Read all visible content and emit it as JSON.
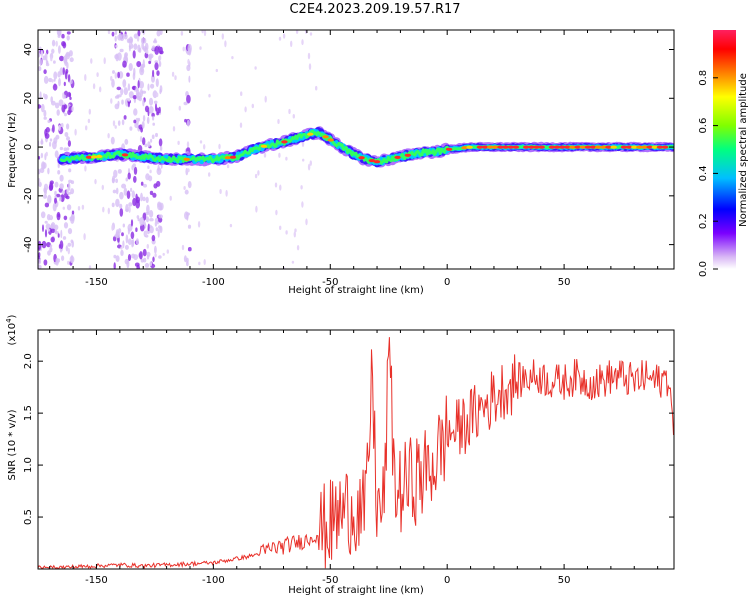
{
  "title": "C2E4.2023.209.19.57.R17",
  "chart_data": [
    {
      "type": "heatmap",
      "title": "C2E4.2023.209.19.57.R17",
      "xlabel": "Height of straight line (km)",
      "ylabel": "Frequency (Hz)",
      "xlim": [
        -175,
        97
      ],
      "ylim": [
        -50,
        48
      ],
      "xticks": [
        -150,
        -100,
        -50,
        0,
        50
      ],
      "yticks": [
        -40,
        -20,
        0,
        20,
        40
      ],
      "colorbar": {
        "label": "Normalized spectral amplitude",
        "range": [
          0,
          1
        ],
        "ticks": [
          0.0,
          0.2,
          0.4,
          0.6,
          0.8
        ],
        "tick_labels": [
          "0.0",
          "0.2",
          "0.4",
          "0.6",
          "0.8"
        ],
        "colormap": [
          "#ffffff",
          "#d9b8f5",
          "#7a00ff",
          "#0000ff",
          "#00bfff",
          "#00ff80",
          "#80ff00",
          "#ffff00",
          "#ff8000",
          "#ff0000",
          "#ff2060"
        ]
      },
      "ridge": {
        "height_km": [
          -165,
          -150,
          -140,
          -130,
          -120,
          -110,
          -100,
          -90,
          -80,
          -70,
          -60,
          -55,
          -50,
          -45,
          -40,
          -35,
          -30,
          -25,
          -20,
          -15,
          -10,
          -5,
          0,
          10,
          20,
          30,
          40,
          50,
          60,
          70,
          80,
          90,
          97
        ],
        "frequency_hz": [
          -5,
          -4,
          -3,
          -4,
          -5,
          -5,
          -5,
          -4,
          0,
          2,
          5,
          6,
          3,
          0,
          -3,
          -5,
          -6,
          -5,
          -4,
          -3,
          -2,
          -2,
          -1,
          0,
          0,
          0,
          0,
          0,
          0,
          0,
          0,
          0,
          0
        ]
      },
      "noise_bands_km": [
        [
          -175,
          -160
        ],
        [
          -143,
          -122
        ],
        [
          -112,
          -110
        ]
      ]
    },
    {
      "type": "line",
      "xlabel": "Height of straight line (km)",
      "ylabel": "SNR (10 * v/v)",
      "y_multiplier": "(x10",
      "y_multiplier_exp": "4",
      "y_multiplier_close": ")",
      "xlim": [
        -175,
        97
      ],
      "ylim": [
        0,
        2.3
      ],
      "xticks": [
        -150,
        -100,
        -50,
        0,
        50
      ],
      "yticks": [
        0.5,
        1.0,
        1.5,
        2.0
      ],
      "ytick_labels": [
        "0.5",
        "1.0",
        "1.5",
        "2.0"
      ],
      "line_color": "#e8312a",
      "series": [
        {
          "x": [
            -175,
            -160,
            -150,
            -140,
            -130,
            -120,
            -110,
            -100,
            -95,
            -90,
            -85,
            -80,
            -75,
            -70,
            -65,
            -60,
            -55,
            -50,
            -45,
            -40,
            -35,
            -32,
            -30,
            -27,
            -25,
            -22,
            -20,
            -15,
            -10,
            -5,
            0,
            5,
            10,
            15,
            20,
            25,
            30,
            35,
            40,
            45,
            50,
            55,
            60,
            65,
            70,
            75,
            80,
            85,
            90,
            95,
            97
          ],
          "y": [
            0.01,
            0.02,
            0.03,
            0.04,
            0.03,
            0.04,
            0.05,
            0.06,
            0.08,
            0.1,
            0.12,
            0.15,
            0.2,
            0.22,
            0.25,
            0.28,
            0.35,
            0.42,
            0.55,
            0.6,
            0.5,
            1.85,
            0.55,
            0.6,
            2.05,
            0.7,
            0.75,
            0.85,
            0.9,
            1.05,
            1.3,
            1.35,
            1.45,
            1.55,
            1.65,
            1.75,
            1.8,
            1.85,
            1.85,
            1.8,
            1.8,
            1.85,
            1.8,
            1.8,
            1.85,
            1.85,
            1.8,
            1.85,
            1.8,
            1.85,
            1.2
          ]
        }
      ]
    }
  ]
}
